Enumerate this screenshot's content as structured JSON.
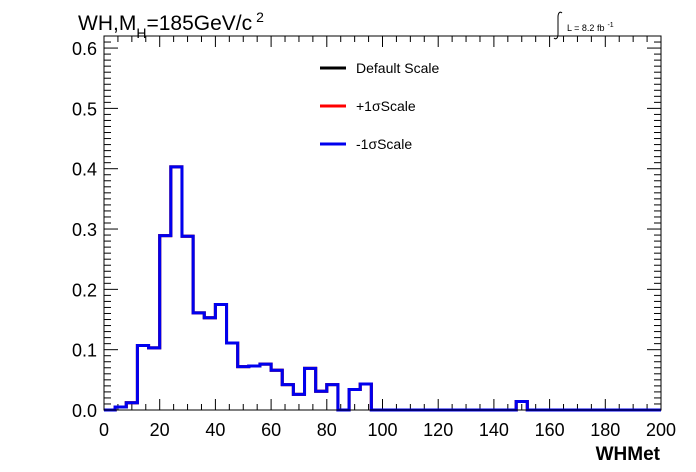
{
  "chart_data": {
    "type": "histogram",
    "title_main": "WH,M",
    "title_sub": "H",
    "title_rest": "=185GeV/c",
    "title_sup": "2",
    "lumi_label": "L = 8.2 fb",
    "lumi_sup": "-1",
    "xlabel": "WHMet",
    "ylabel": "",
    "xlim": [
      0,
      200
    ],
    "ylim": [
      0,
      0.62
    ],
    "xticks": [
      0,
      20,
      40,
      60,
      80,
      100,
      120,
      140,
      160,
      180,
      200
    ],
    "xtick_labels": [
      "0",
      "20",
      "40",
      "60",
      "80",
      "100",
      "120",
      "140",
      "160",
      "180",
      "200"
    ],
    "yticks": [
      0,
      0.1,
      0.2,
      0.3,
      0.4,
      0.5,
      0.6
    ],
    "ytick_labels": [
      "0.0",
      "0.1",
      "0.2",
      "0.3",
      "0.4",
      "0.5",
      "0.6"
    ],
    "bin_edges": [
      0,
      4,
      8,
      12,
      16,
      20,
      24,
      28,
      32,
      36,
      40,
      44,
      48,
      52,
      56,
      60,
      64,
      68,
      72,
      76,
      80,
      84,
      88,
      92,
      96,
      100,
      104,
      108,
      112,
      116,
      120,
      124,
      128,
      132,
      136,
      140,
      144,
      148,
      152,
      156,
      160,
      164,
      168,
      172,
      176,
      180,
      184,
      188,
      192,
      196,
      200
    ],
    "series": [
      {
        "name": "Default Scale",
        "color": "#000000",
        "values": [
          0,
          0.005,
          0.012,
          0.107,
          0.103,
          0.289,
          0.403,
          0.288,
          0.161,
          0.153,
          0.175,
          0.111,
          0.072,
          0.073,
          0.076,
          0.066,
          0.042,
          0.026,
          0.069,
          0.031,
          0.042,
          0.0,
          0.034,
          0.043,
          0,
          0,
          0,
          0,
          0,
          0,
          0,
          0,
          0,
          0,
          0,
          0,
          0,
          0.014,
          0,
          0,
          0,
          0,
          0,
          0,
          0,
          0,
          0,
          0,
          0,
          0
        ]
      },
      {
        "name": "+1σScale",
        "color": "#ff0000",
        "values": [
          0,
          0.005,
          0.012,
          0.107,
          0.103,
          0.289,
          0.403,
          0.288,
          0.161,
          0.153,
          0.175,
          0.111,
          0.072,
          0.073,
          0.076,
          0.066,
          0.042,
          0.026,
          0.069,
          0.031,
          0.042,
          0.0,
          0.034,
          0.043,
          0,
          0,
          0,
          0,
          0,
          0,
          0,
          0,
          0,
          0,
          0,
          0,
          0,
          0.014,
          0,
          0,
          0,
          0,
          0,
          0,
          0,
          0,
          0,
          0,
          0,
          0
        ]
      },
      {
        "name": "-1σScale",
        "color": "#0000ee",
        "values": [
          0,
          0.005,
          0.012,
          0.107,
          0.103,
          0.289,
          0.403,
          0.288,
          0.161,
          0.153,
          0.175,
          0.111,
          0.072,
          0.073,
          0.076,
          0.066,
          0.042,
          0.026,
          0.069,
          0.031,
          0.042,
          0.0,
          0.034,
          0.043,
          0,
          0,
          0,
          0,
          0,
          0,
          0,
          0,
          0,
          0,
          0,
          0,
          0,
          0.014,
          0,
          0,
          0,
          0,
          0,
          0,
          0,
          0,
          0,
          0,
          0,
          0
        ]
      }
    ],
    "legend_placement": "top-center",
    "grid": false
  }
}
